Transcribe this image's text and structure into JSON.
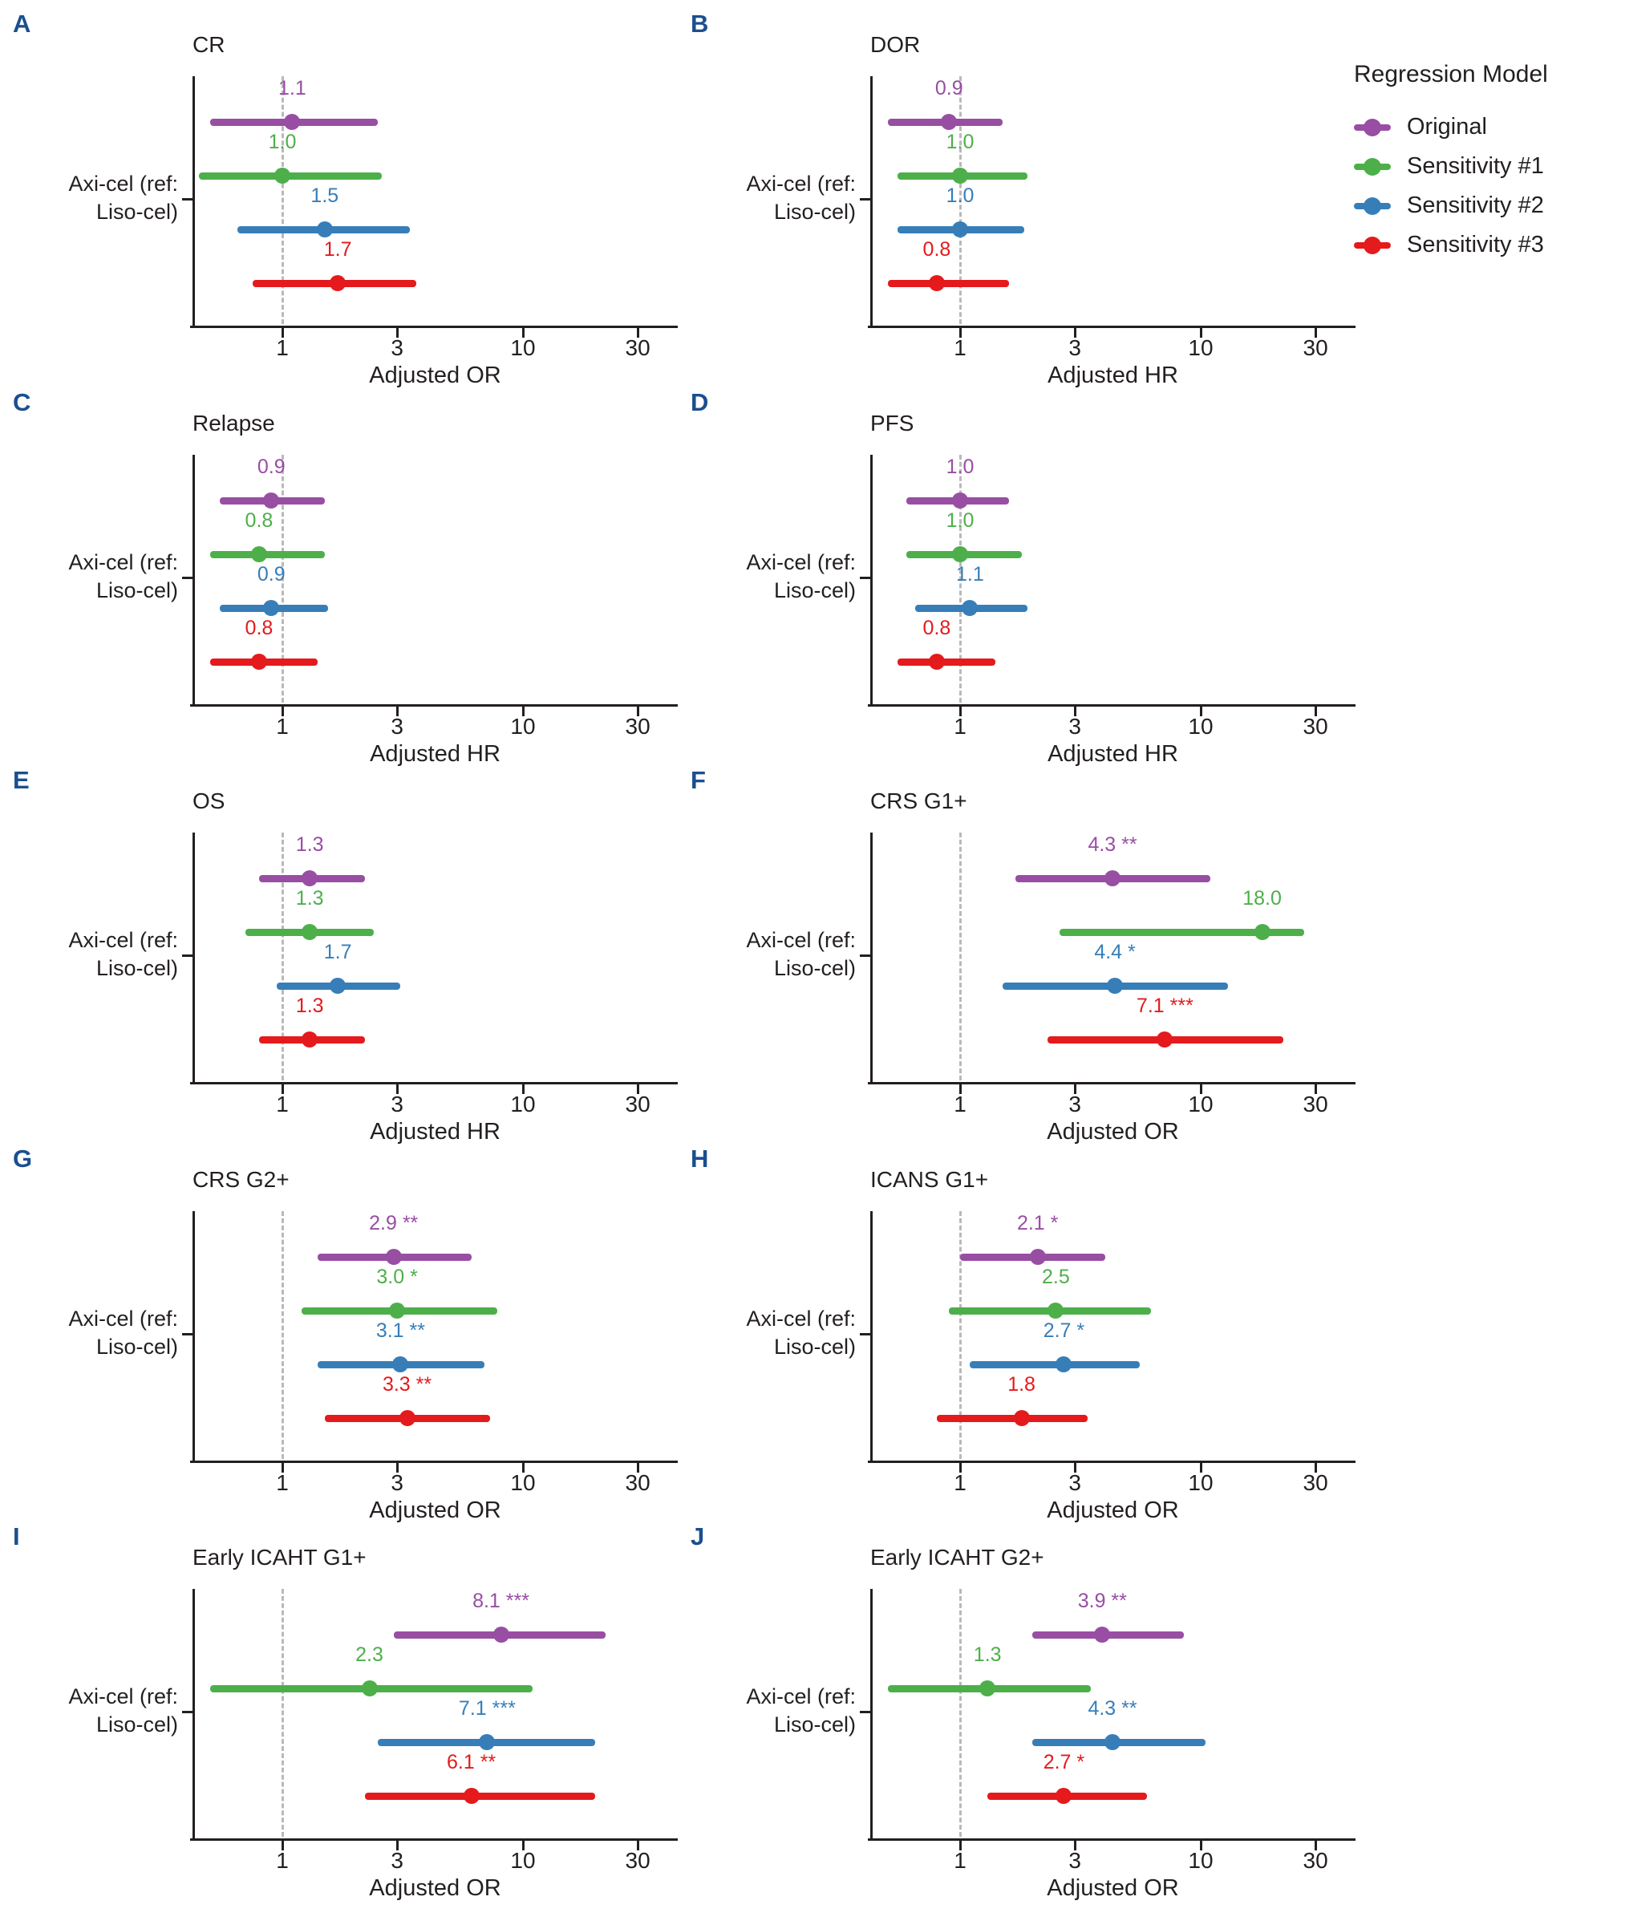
{
  "figure": {
    "text_color": "#231f20",
    "panel_letter_color": "#1b4f8f",
    "reference_dash_color": "#b9b9b9",
    "y_axis_label_line1": "Axi-cel (ref:",
    "y_axis_label_line2": "Liso-cel)"
  },
  "legend": {
    "title": "Regression Model",
    "items": [
      {
        "label": "Original",
        "color": "#984ea3"
      },
      {
        "label": "Sensitivity #1",
        "color": "#4daf4a"
      },
      {
        "label": "Sensitivity #2",
        "color": "#377eb8"
      },
      {
        "label": "Sensitivity #3",
        "color": "#e41a1c"
      }
    ]
  },
  "chart_data": [
    {
      "panel": "A",
      "title": "CR",
      "type": "forest-dot-ci",
      "x_scale": "log",
      "xlabel": "Adjusted OR",
      "x_ticks": [
        1,
        3,
        10,
        30
      ],
      "reference_line": 1,
      "y_category": "Axi-cel (ref: Liso-cel)",
      "series": [
        {
          "name": "Original",
          "label": "1.1",
          "estimate": 1.1,
          "ci_low": 0.5,
          "ci_high": 2.5
        },
        {
          "name": "Sensitivity #1",
          "label": "1.0",
          "estimate": 1.0,
          "ci_low": 0.45,
          "ci_high": 2.6
        },
        {
          "name": "Sensitivity #2",
          "label": "1.5",
          "estimate": 1.5,
          "ci_low": 0.65,
          "ci_high": 3.4
        },
        {
          "name": "Sensitivity #3",
          "label": "1.7",
          "estimate": 1.7,
          "ci_low": 0.75,
          "ci_high": 3.6
        }
      ]
    },
    {
      "panel": "B",
      "title": "DOR",
      "type": "forest-dot-ci",
      "x_scale": "log",
      "xlabel": "Adjusted HR",
      "x_ticks": [
        1,
        3,
        10,
        30
      ],
      "reference_line": 1,
      "y_category": "Axi-cel (ref: Liso-cel)",
      "series": [
        {
          "name": "Original",
          "label": "0.9",
          "estimate": 0.9,
          "ci_low": 0.5,
          "ci_high": 1.5
        },
        {
          "name": "Sensitivity #1",
          "label": "1.0",
          "estimate": 1.0,
          "ci_low": 0.55,
          "ci_high": 1.9
        },
        {
          "name": "Sensitivity #2",
          "label": "1.0",
          "estimate": 1.0,
          "ci_low": 0.55,
          "ci_high": 1.85
        },
        {
          "name": "Sensitivity #3",
          "label": "0.8",
          "estimate": 0.8,
          "ci_low": 0.5,
          "ci_high": 1.6
        }
      ]
    },
    {
      "panel": "C",
      "title": "Relapse",
      "type": "forest-dot-ci",
      "x_scale": "log",
      "xlabel": "Adjusted HR",
      "x_ticks": [
        1,
        3,
        10,
        30
      ],
      "reference_line": 1,
      "y_category": "Axi-cel (ref: Liso-cel)",
      "series": [
        {
          "name": "Original",
          "label": "0.9",
          "estimate": 0.9,
          "ci_low": 0.55,
          "ci_high": 1.5
        },
        {
          "name": "Sensitivity #1",
          "label": "0.8",
          "estimate": 0.8,
          "ci_low": 0.5,
          "ci_high": 1.5
        },
        {
          "name": "Sensitivity #2",
          "label": "0.9",
          "estimate": 0.9,
          "ci_low": 0.55,
          "ci_high": 1.55
        },
        {
          "name": "Sensitivity #3",
          "label": "0.8",
          "estimate": 0.8,
          "ci_low": 0.5,
          "ci_high": 1.4
        }
      ]
    },
    {
      "panel": "D",
      "title": "PFS",
      "type": "forest-dot-ci",
      "x_scale": "log",
      "xlabel": "Adjusted HR",
      "x_ticks": [
        1,
        3,
        10,
        30
      ],
      "reference_line": 1,
      "y_category": "Axi-cel (ref: Liso-cel)",
      "series": [
        {
          "name": "Original",
          "label": "1.0",
          "estimate": 1.0,
          "ci_low": 0.6,
          "ci_high": 1.6
        },
        {
          "name": "Sensitivity #1",
          "label": "1.0",
          "estimate": 1.0,
          "ci_low": 0.6,
          "ci_high": 1.8
        },
        {
          "name": "Sensitivity #2",
          "label": "1.1",
          "estimate": 1.1,
          "ci_low": 0.65,
          "ci_high": 1.9
        },
        {
          "name": "Sensitivity #3",
          "label": "0.8",
          "estimate": 0.8,
          "ci_low": 0.55,
          "ci_high": 1.4
        }
      ]
    },
    {
      "panel": "E",
      "title": "OS",
      "type": "forest-dot-ci",
      "x_scale": "log",
      "xlabel": "Adjusted HR",
      "x_ticks": [
        1,
        3,
        10,
        30
      ],
      "reference_line": 1,
      "y_category": "Axi-cel (ref: Liso-cel)",
      "series": [
        {
          "name": "Original",
          "label": "1.3",
          "estimate": 1.3,
          "ci_low": 0.8,
          "ci_high": 2.2
        },
        {
          "name": "Sensitivity #1",
          "label": "1.3",
          "estimate": 1.3,
          "ci_low": 0.7,
          "ci_high": 2.4
        },
        {
          "name": "Sensitivity #2",
          "label": "1.7",
          "estimate": 1.7,
          "ci_low": 0.95,
          "ci_high": 3.1
        },
        {
          "name": "Sensitivity #3",
          "label": "1.3",
          "estimate": 1.3,
          "ci_low": 0.8,
          "ci_high": 2.2
        }
      ]
    },
    {
      "panel": "F",
      "title": "CRS G1+",
      "type": "forest-dot-ci",
      "x_scale": "log",
      "xlabel": "Adjusted OR",
      "x_ticks": [
        1,
        3,
        10,
        30
      ],
      "reference_line": 1,
      "y_category": "Axi-cel (ref: Liso-cel)",
      "series": [
        {
          "name": "Original",
          "label": "4.3 **",
          "estimate": 4.3,
          "ci_low": 1.7,
          "ci_high": 11.0
        },
        {
          "name": "Sensitivity #1",
          "label": "18.0",
          "estimate": 18.0,
          "ci_low": 2.6,
          "ci_high": 27.0
        },
        {
          "name": "Sensitivity #2",
          "label": "4.4 *",
          "estimate": 4.4,
          "ci_low": 1.5,
          "ci_high": 13.0
        },
        {
          "name": "Sensitivity #3",
          "label": "7.1 ***",
          "estimate": 7.1,
          "ci_low": 2.3,
          "ci_high": 22.0
        }
      ]
    },
    {
      "panel": "G",
      "title": "CRS G2+",
      "type": "forest-dot-ci",
      "x_scale": "log",
      "xlabel": "Adjusted OR",
      "x_ticks": [
        1,
        3,
        10,
        30
      ],
      "reference_line": 1,
      "y_category": "Axi-cel (ref: Liso-cel)",
      "series": [
        {
          "name": "Original",
          "label": "2.9 **",
          "estimate": 2.9,
          "ci_low": 1.4,
          "ci_high": 6.1
        },
        {
          "name": "Sensitivity #1",
          "label": "3.0 *",
          "estimate": 3.0,
          "ci_low": 1.2,
          "ci_high": 7.8
        },
        {
          "name": "Sensitivity #2",
          "label": "3.1 **",
          "estimate": 3.1,
          "ci_low": 1.4,
          "ci_high": 6.9
        },
        {
          "name": "Sensitivity #3",
          "label": "3.3 **",
          "estimate": 3.3,
          "ci_low": 1.5,
          "ci_high": 7.3
        }
      ]
    },
    {
      "panel": "H",
      "title": "ICANS G1+",
      "type": "forest-dot-ci",
      "x_scale": "log",
      "xlabel": "Adjusted OR",
      "x_ticks": [
        1,
        3,
        10,
        30
      ],
      "reference_line": 1,
      "y_category": "Axi-cel (ref: Liso-cel)",
      "series": [
        {
          "name": "Original",
          "label": "2.1 *",
          "estimate": 2.1,
          "ci_low": 1.0,
          "ci_high": 4.0
        },
        {
          "name": "Sensitivity #1",
          "label": "2.5",
          "estimate": 2.5,
          "ci_low": 0.9,
          "ci_high": 6.2
        },
        {
          "name": "Sensitivity #2",
          "label": "2.7 *",
          "estimate": 2.7,
          "ci_low": 1.1,
          "ci_high": 5.6
        },
        {
          "name": "Sensitivity #3",
          "label": "1.8",
          "estimate": 1.8,
          "ci_low": 0.8,
          "ci_high": 3.4
        }
      ]
    },
    {
      "panel": "I",
      "title": "Early ICAHT G1+",
      "type": "forest-dot-ci",
      "x_scale": "log",
      "xlabel": "Adjusted OR",
      "x_ticks": [
        1,
        3,
        10,
        30
      ],
      "reference_line": 1,
      "y_category": "Axi-cel (ref: Liso-cel)",
      "series": [
        {
          "name": "Original",
          "label": "8.1 ***",
          "estimate": 8.1,
          "ci_low": 2.9,
          "ci_high": 22.0
        },
        {
          "name": "Sensitivity #1",
          "label": "2.3",
          "estimate": 2.3,
          "ci_low": 0.5,
          "ci_high": 11.0
        },
        {
          "name": "Sensitivity #2",
          "label": "7.1 ***",
          "estimate": 7.1,
          "ci_low": 2.5,
          "ci_high": 20.0
        },
        {
          "name": "Sensitivity #3",
          "label": "6.1 **",
          "estimate": 6.1,
          "ci_low": 2.2,
          "ci_high": 20.0
        }
      ]
    },
    {
      "panel": "J",
      "title": "Early ICAHT G2+",
      "type": "forest-dot-ci",
      "x_scale": "log",
      "xlabel": "Adjusted OR",
      "x_ticks": [
        1,
        3,
        10,
        30
      ],
      "reference_line": 1,
      "y_category": "Axi-cel (ref: Liso-cel)",
      "series": [
        {
          "name": "Original",
          "label": "3.9 **",
          "estimate": 3.9,
          "ci_low": 2.0,
          "ci_high": 8.5
        },
        {
          "name": "Sensitivity #1",
          "label": "1.3",
          "estimate": 1.3,
          "ci_low": 0.5,
          "ci_high": 3.5
        },
        {
          "name": "Sensitivity #2",
          "label": "4.3 **",
          "estimate": 4.3,
          "ci_low": 2.0,
          "ci_high": 10.5
        },
        {
          "name": "Sensitivity #3",
          "label": "2.7 *",
          "estimate": 2.7,
          "ci_low": 1.3,
          "ci_high": 6.0
        }
      ]
    }
  ]
}
